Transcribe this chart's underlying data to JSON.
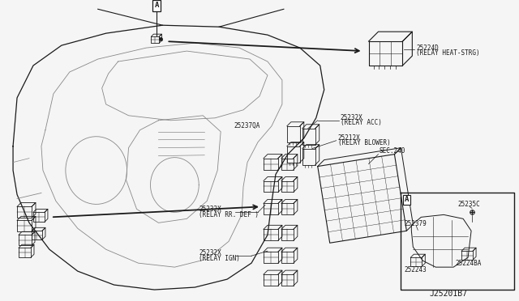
{
  "bg_color": "#f5f5f5",
  "line_color": "#1a1a1a",
  "gray_color": "#888888",
  "light_gray": "#aaaaaa",
  "labels": {
    "part_num_relay_heat": "25224D",
    "relay_heat_name": "(RELAY HEAT-STRG)",
    "part_num_relay_acc": "25232X",
    "relay_acc_name": "(RELAY ACC)",
    "part_num_relay_blower": "25212X",
    "relay_blower_name": "(RELAY BLOWER)",
    "sec240": "SEC.240",
    "part_num_rr_def": "25232X",
    "relay_rr_def_name": "(RELAY RR. DEF )",
    "part_num_relay_ign": "25232X",
    "relay_ign_name": "(RELAY IGN)",
    "part_num_25237qa": "25237QA",
    "part_num_25235c": "25235C",
    "part_num_252379": "252379",
    "part_num_25224ba": "25224BA",
    "part_num_252243": "252243",
    "diagram_code": "J25201B7",
    "label_a": "A"
  },
  "font_size_tiny": 5.0,
  "font_size_small": 5.8,
  "font_size_medium": 7.0
}
